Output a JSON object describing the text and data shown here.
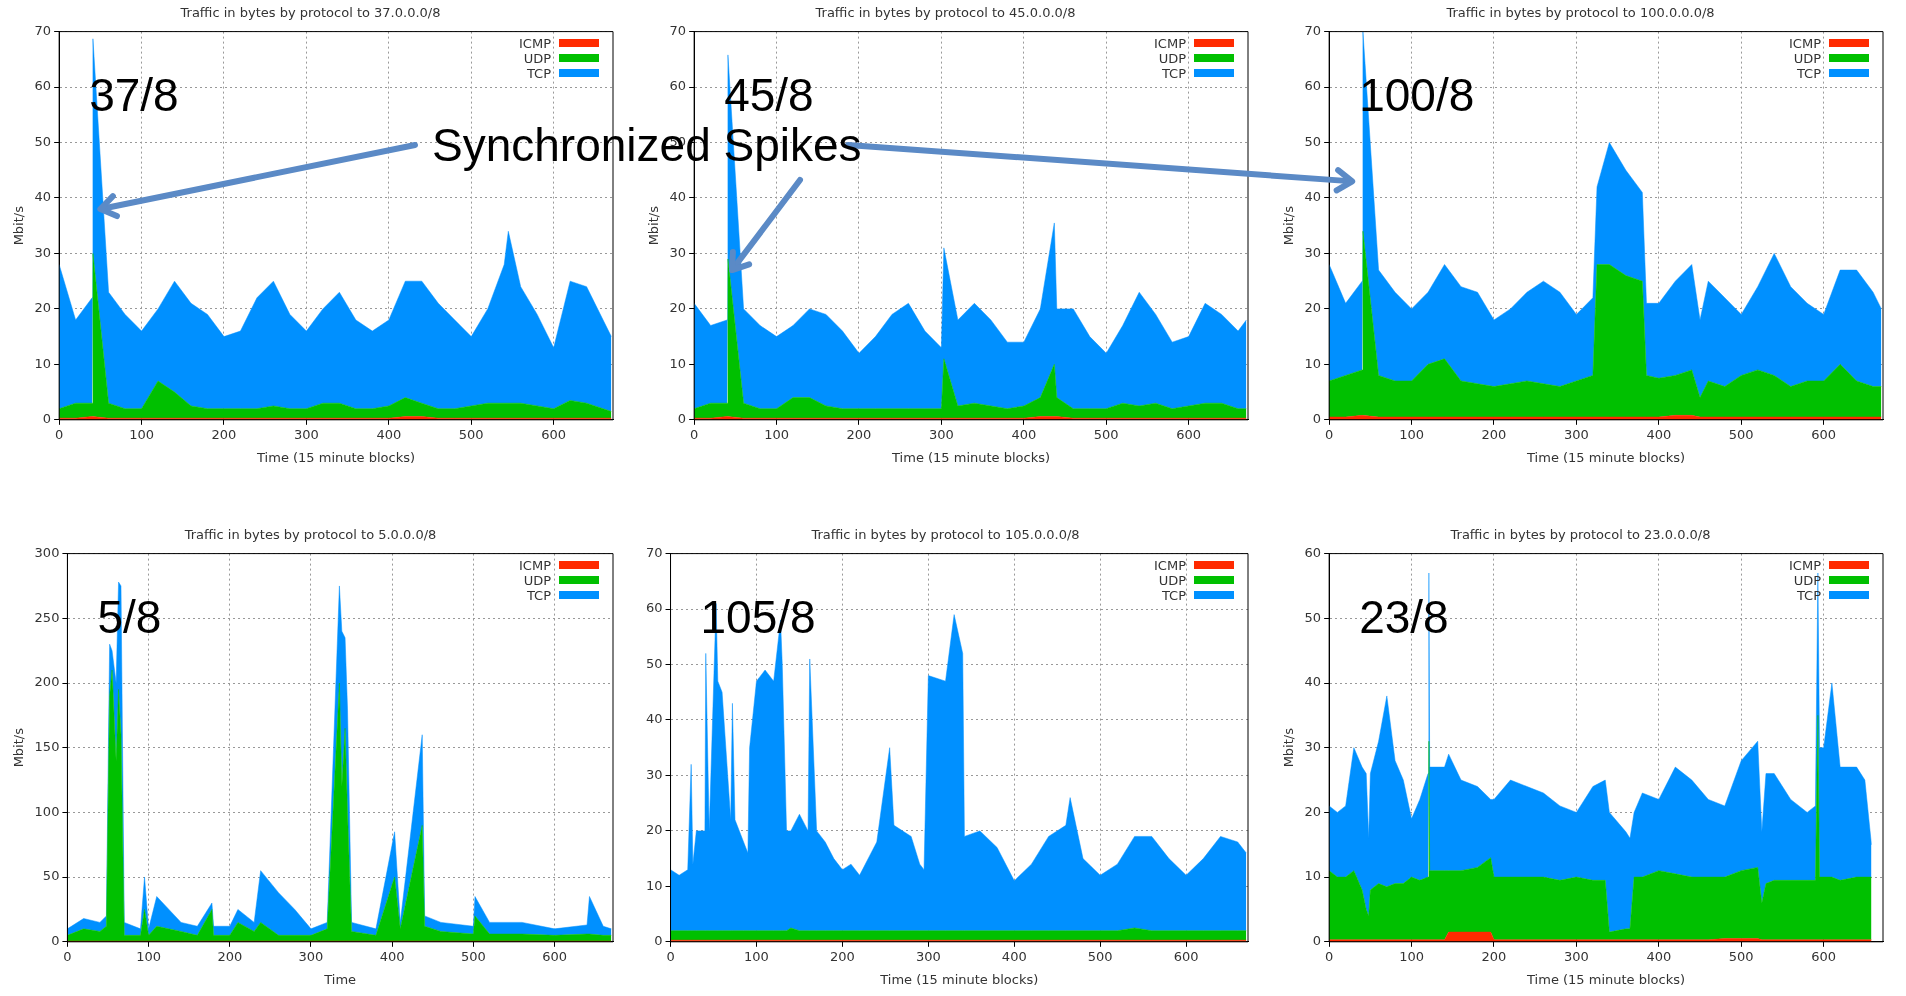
{
  "chart_data": [
    {
      "type": "area",
      "stacked": true,
      "title": "Traffic in bytes by protocol to 37.0.0.0/8",
      "xlabel": "Time (15 minute blocks)",
      "ylabel": "Mbit/s",
      "xlim": [
        0,
        672
      ],
      "xticks": [
        0,
        100,
        200,
        300,
        400,
        500,
        600
      ],
      "ylim": [
        0,
        70
      ],
      "yticks": [
        0,
        10,
        20,
        30,
        40,
        50,
        60,
        70
      ],
      "grid": true,
      "legend": "top right",
      "annotations": [
        "37/8",
        "Synchronized Spikes"
      ],
      "x": [
        0,
        20,
        40,
        41,
        60,
        80,
        100,
        120,
        140,
        160,
        180,
        200,
        220,
        240,
        260,
        280,
        300,
        320,
        340,
        360,
        380,
        400,
        420,
        440,
        460,
        480,
        500,
        520,
        540,
        545,
        560,
        580,
        600,
        620,
        640,
        660,
        670
      ],
      "series": [
        {
          "name": "ICMP",
          "color": "#ff2a00",
          "values": [
            0.3,
            0.3,
            0.6,
            0.6,
            0.3,
            0.3,
            0.3,
            0.3,
            0.3,
            0.3,
            0.3,
            0.3,
            0.3,
            0.3,
            0.3,
            0.3,
            0.3,
            0.3,
            0.3,
            0.3,
            0.3,
            0.3,
            0.6,
            0.6,
            0.3,
            0.3,
            0.3,
            0.3,
            0.3,
            0.3,
            0.3,
            0.3,
            0.3,
            0.3,
            0.3,
            0.3,
            0.3
          ]
        },
        {
          "name": "UDP",
          "color": "#00c000",
          "values": [
            1.7,
            2.7,
            2.4,
            29.4,
            2.7,
            1.7,
            1.7,
            6.7,
            4.7,
            2.2,
            1.7,
            1.7,
            1.7,
            1.7,
            2.2,
            1.7,
            1.7,
            2.7,
            2.7,
            1.7,
            1.7,
            2.2,
            3.4,
            2.4,
            1.7,
            1.7,
            2.2,
            2.7,
            2.7,
            2.7,
            2.7,
            2.2,
            1.7,
            3.2,
            2.7,
            1.7,
            1.2
          ]
        },
        {
          "name": "TCP",
          "color": "#0090ff",
          "values": [
            26,
            15,
            19,
            38.7,
            20,
            17,
            14,
            13,
            20,
            18.5,
            17,
            13,
            14,
            20,
            22.5,
            17,
            14,
            17,
            20,
            16,
            14,
            15.5,
            21,
            22,
            19,
            16,
            12.5,
            17,
            25,
            31,
            21,
            16.5,
            11,
            21.5,
            21,
            16,
            13.5
          ]
        }
      ]
    },
    {
      "type": "area",
      "stacked": true,
      "title": "Traffic in bytes by protocol to 45.0.0.0/8",
      "xlabel": "Time (15 minute blocks)",
      "ylabel": "Mbit/s",
      "xlim": [
        0,
        672
      ],
      "xticks": [
        0,
        100,
        200,
        300,
        400,
        500,
        600
      ],
      "ylim": [
        0,
        70
      ],
      "yticks": [
        0,
        10,
        20,
        30,
        40,
        50,
        60,
        70
      ],
      "grid": true,
      "legend": "top right",
      "annotations": [
        "45/8"
      ],
      "x": [
        0,
        20,
        40,
        41,
        60,
        80,
        100,
        120,
        140,
        160,
        180,
        200,
        220,
        240,
        260,
        280,
        300,
        303,
        320,
        340,
        360,
        380,
        400,
        420,
        437,
        440,
        460,
        480,
        500,
        520,
        540,
        560,
        580,
        600,
        620,
        640,
        660,
        670
      ],
      "series": [
        {
          "name": "ICMP",
          "color": "#ff2a00",
          "values": [
            0.3,
            0.3,
            0.6,
            0.6,
            0.3,
            0.3,
            0.3,
            0.3,
            0.3,
            0.3,
            0.3,
            0.3,
            0.3,
            0.3,
            0.3,
            0.3,
            0.3,
            0.3,
            0.3,
            0.3,
            0.3,
            0.3,
            0.3,
            0.6,
            0.6,
            0.6,
            0.3,
            0.3,
            0.3,
            0.3,
            0.3,
            0.3,
            0.3,
            0.3,
            0.3,
            0.3,
            0.3,
            0.3
          ]
        },
        {
          "name": "UDP",
          "color": "#00c000",
          "values": [
            1.7,
            2.7,
            2.4,
            28.4,
            2.7,
            1.7,
            1.7,
            3.7,
            3.7,
            2.2,
            1.7,
            1.7,
            1.7,
            1.7,
            1.7,
            1.7,
            1.7,
            10.7,
            2.2,
            2.7,
            2.2,
            1.7,
            2.2,
            3.4,
            9.4,
            3.4,
            1.7,
            1.7,
            1.7,
            2.7,
            2.2,
            2.7,
            1.7,
            2.2,
            2.7,
            2.7,
            1.7,
            1.7
          ]
        },
        {
          "name": "TCP",
          "color": "#0090ff",
          "values": [
            19,
            14,
            15,
            36.8,
            17,
            15,
            13,
            13,
            16,
            16.5,
            14,
            10,
            13,
            17,
            19,
            14,
            11,
            20,
            15.5,
            18,
            15.5,
            12,
            11.5,
            16,
            25.5,
            16,
            18,
            13,
            10,
            14,
            20.5,
            16,
            12,
            12.5,
            18,
            16,
            14,
            16
          ]
        }
      ]
    },
    {
      "type": "area",
      "stacked": true,
      "title": "Traffic in bytes by protocol to 100.0.0.0/8",
      "xlabel": "Time (15 minute blocks)",
      "ylabel": "Mbit/s",
      "xlim": [
        0,
        672
      ],
      "xticks": [
        0,
        100,
        200,
        300,
        400,
        500,
        600
      ],
      "ylim": [
        0,
        70
      ],
      "yticks": [
        0,
        10,
        20,
        30,
        40,
        50,
        60,
        70
      ],
      "grid": true,
      "legend": "top right",
      "annotations": [
        "100/8"
      ],
      "x": [
        0,
        20,
        40,
        41,
        60,
        80,
        100,
        120,
        140,
        160,
        180,
        200,
        220,
        240,
        260,
        280,
        300,
        320,
        325,
        340,
        360,
        380,
        385,
        400,
        420,
        440,
        450,
        460,
        480,
        500,
        520,
        540,
        560,
        580,
        600,
        620,
        640,
        660,
        670
      ],
      "series": [
        {
          "name": "ICMP",
          "color": "#ff2a00",
          "values": [
            0.5,
            0.5,
            0.8,
            0.8,
            0.5,
            0.5,
            0.5,
            0.5,
            0.5,
            0.5,
            0.5,
            0.5,
            0.5,
            0.5,
            0.5,
            0.5,
            0.5,
            0.5,
            0.5,
            0.5,
            0.5,
            0.5,
            0.5,
            0.5,
            0.8,
            0.8,
            0.5,
            0.5,
            0.5,
            0.5,
            0.5,
            0.5,
            0.5,
            0.5,
            0.5,
            0.5,
            0.5,
            0.5,
            0.5
          ]
        },
        {
          "name": "UDP",
          "color": "#00c000",
          "values": [
            6.5,
            7.5,
            8.2,
            33.2,
            7.5,
            6.5,
            6.5,
            9.5,
            10.5,
            6.5,
            6,
            5.5,
            6,
            6.5,
            6,
            5.5,
            6.5,
            7.5,
            27.5,
            27.5,
            25.5,
            24.5,
            7.5,
            7,
            7.2,
            8.2,
            3.5,
            6.5,
            5.5,
            7.5,
            8.5,
            7.5,
            5.5,
            6.5,
            6.5,
            9.5,
            6.5,
            5.5,
            5.5
          ]
        },
        {
          "name": "TCP",
          "color": "#0090ff",
          "values": [
            21,
            13,
            16,
            36,
            19,
            16,
            13,
            13,
            17,
            17,
            16.5,
            12,
            13.5,
            16,
            18.5,
            17,
            12,
            14,
            14,
            22,
            19,
            16,
            13,
            13.5,
            17,
            19,
            14,
            18,
            16,
            11,
            15,
            22,
            18,
            14,
            12,
            17,
            20,
            17,
            14
          ]
        }
      ]
    },
    {
      "type": "area",
      "stacked": true,
      "title": "Traffic in bytes by protocol to 5.0.0.0/8",
      "xlabel": "Time",
      "ylabel": "Mbit/s",
      "xlim": [
        0,
        672
      ],
      "xticks": [
        0,
        100,
        200,
        300,
        400,
        500,
        600
      ],
      "ylim": [
        0,
        300
      ],
      "yticks": [
        0,
        50,
        100,
        150,
        200,
        250,
        300
      ],
      "grid": true,
      "legend": "top right",
      "annotations": [
        "5/8"
      ],
      "x": [
        0,
        20,
        40,
        48,
        52,
        55,
        60,
        63,
        66,
        70,
        90,
        95,
        100,
        110,
        140,
        160,
        178,
        180,
        200,
        210,
        230,
        238,
        260,
        280,
        300,
        320,
        335,
        338,
        342,
        345,
        350,
        380,
        403,
        410,
        437,
        440,
        460,
        500,
        502,
        520,
        560,
        600,
        640,
        643,
        660,
        670
      ],
      "series": [
        {
          "name": "ICMP",
          "color": "#ff2a00",
          "values": [
            0.5,
            0.5,
            0.5,
            0.5,
            0.5,
            0.5,
            0.5,
            0.5,
            0.5,
            0.5,
            0.5,
            0.5,
            0.5,
            0.5,
            0.5,
            0.5,
            0.5,
            0.5,
            0.5,
            0.5,
            0.5,
            0.5,
            0.5,
            0.5,
            0.5,
            0.5,
            0.5,
            0.5,
            0.5,
            0.5,
            0.5,
            0.5,
            0.5,
            0.5,
            0.5,
            0.5,
            0.5,
            0.5,
            0.5,
            0.5,
            0.5,
            0.5,
            0.5,
            0.5,
            0.5,
            0.5
          ]
        },
        {
          "name": "UDP",
          "color": "#00c000",
          "values": [
            4.5,
            9.5,
            7.5,
            11.5,
            189.5,
            209.5,
            139.5,
            194.5,
            159.5,
            4.5,
            4.5,
            24.5,
            4.5,
            11.5,
            7.5,
            4.5,
            24.5,
            4.5,
            4.5,
            14.5,
            7.5,
            14.5,
            4.5,
            4.5,
            4.5,
            9.5,
            199.5,
            119.5,
            164.5,
            99.5,
            7.5,
            4.5,
            49.5,
            9.5,
            89.5,
            11.5,
            7.5,
            5.5,
            19.5,
            5.5,
            5.5,
            4.5,
            5.5,
            5.5,
            4.5,
            4.5
          ]
        },
        {
          "name": "TCP",
          "color": "#0090ff",
          "values": [
            5,
            8,
            7,
            8,
            40,
            15,
            60,
            83,
            115,
            10,
            5,
            25,
            5,
            23,
            7,
            7,
            5,
            7,
            7,
            10,
            7,
            40,
            33,
            20,
            5,
            5,
            75,
            120,
            70,
            80,
            7,
            5,
            35,
            5,
            70,
            8,
            7,
            6,
            15,
            9,
            9,
            5,
            7,
            29,
            7,
            5
          ]
        }
      ]
    },
    {
      "type": "area",
      "stacked": true,
      "title": "Traffic in bytes by protocol to 105.0.0.0/8",
      "xlabel": "Time (15 minute blocks)",
      "xlim": [
        0,
        672
      ],
      "xticks": [
        0,
        100,
        200,
        300,
        400,
        500,
        600
      ],
      "ylim": [
        0,
        70
      ],
      "yticks": [
        0,
        10,
        20,
        30,
        40,
        50,
        60,
        70
      ],
      "grid": true,
      "legend": "top right",
      "annotations": [
        "105/8"
      ],
      "x": [
        0,
        10,
        20,
        24,
        26,
        30,
        40,
        41,
        45,
        53,
        55,
        60,
        70,
        72,
        75,
        85,
        90,
        92,
        100,
        110,
        120,
        128,
        130,
        135,
        140,
        150,
        160,
        162,
        170,
        180,
        190,
        200,
        210,
        220,
        240,
        255,
        260,
        280,
        290,
        295,
        300,
        320,
        330,
        340,
        342,
        360,
        380,
        400,
        420,
        440,
        460,
        465,
        480,
        500,
        520,
        540,
        560,
        580,
        600,
        620,
        640,
        660,
        670
      ],
      "series": [
        {
          "name": "ICMP",
          "color": "#ff2a00",
          "values": [
            0.3,
            0.3,
            0.3,
            0.3,
            0.3,
            0.3,
            0.3,
            0.3,
            0.3,
            0.3,
            0.3,
            0.3,
            0.3,
            0.3,
            0.3,
            0.3,
            0.3,
            0.3,
            0.3,
            0.3,
            0.3,
            0.3,
            0.3,
            0.3,
            0.3,
            0.3,
            0.3,
            0.3,
            0.3,
            0.3,
            0.3,
            0.3,
            0.3,
            0.3,
            0.3,
            0.3,
            0.3,
            0.3,
            0.3,
            0.3,
            0.3,
            0.3,
            0.3,
            0.3,
            0.3,
            0.3,
            0.3,
            0.3,
            0.3,
            0.3,
            0.3,
            0.3,
            0.3,
            0.3,
            0.3,
            0.3,
            0.3,
            0.3,
            0.3,
            0.3,
            0.3,
            0.3,
            0.3
          ]
        },
        {
          "name": "UDP",
          "color": "#00c000",
          "values": [
            1.7,
            1.7,
            1.7,
            1.7,
            1.7,
            1.7,
            1.7,
            1.7,
            1.7,
            1.7,
            1.7,
            1.7,
            1.7,
            1.7,
            1.7,
            1.7,
            1.7,
            1.7,
            1.7,
            1.7,
            1.7,
            1.7,
            1.7,
            1.7,
            2.2,
            1.7,
            1.7,
            1.7,
            1.7,
            1.7,
            1.7,
            1.7,
            1.7,
            1.7,
            1.7,
            1.7,
            1.7,
            1.7,
            1.7,
            1.7,
            1.7,
            1.7,
            1.7,
            1.7,
            1.7,
            1.7,
            1.7,
            1.7,
            1.7,
            1.7,
            1.7,
            1.7,
            1.7,
            1.7,
            1.7,
            2.2,
            1.7,
            1.7,
            1.7,
            1.7,
            1.7,
            1.7,
            1.7
          ]
        },
        {
          "name": "TCP",
          "color": "#0090ff",
          "values": [
            11,
            10,
            11,
            30,
            12,
            18,
            18,
            50,
            18,
            59,
            45,
            43,
            20,
            41,
            20,
            16,
            14,
            33,
            45,
            47,
            45,
            56,
            48,
            18,
            17.5,
            21,
            18,
            49,
            18,
            16,
            13,
            11,
            12,
            10,
            16,
            33,
            19,
            17,
            12,
            11,
            46,
            45,
            57,
            50,
            17,
            18,
            15,
            9,
            12,
            17,
            19,
            24,
            13,
            10,
            12,
            16.5,
            17,
            13,
            10,
            13,
            17,
            16,
            14
          ]
        }
      ]
    },
    {
      "type": "area",
      "stacked": true,
      "title": "Traffic in bytes by protocol to 23.0.0.0/8",
      "xlabel": "Time (15 minute blocks)",
      "ylabel": "Mbit/s",
      "xlim": [
        0,
        672
      ],
      "xticks": [
        0,
        100,
        200,
        300,
        400,
        500,
        600
      ],
      "ylim": [
        0,
        60
      ],
      "yticks": [
        0,
        10,
        20,
        30,
        40,
        50,
        60
      ],
      "grid": true,
      "legend": "top right",
      "annotations": [
        "23/8"
      ],
      "x": [
        0,
        10,
        20,
        30,
        40,
        45,
        48,
        50,
        60,
        70,
        80,
        90,
        100,
        110,
        120,
        121,
        122,
        125,
        140,
        145,
        160,
        180,
        196,
        200,
        220,
        240,
        260,
        280,
        300,
        320,
        335,
        340,
        360,
        365,
        370,
        380,
        400,
        420,
        440,
        460,
        480,
        500,
        520,
        525,
        530,
        540,
        560,
        580,
        590,
        593,
        595,
        600,
        610,
        620,
        640,
        650,
        658
      ],
      "series": [
        {
          "name": "ICMP",
          "color": "#ff2a00",
          "values": [
            0.3,
            0.3,
            0.3,
            0.3,
            0.3,
            0.3,
            0.3,
            0.3,
            0.3,
            0.3,
            0.3,
            0.3,
            0.3,
            0.3,
            0.3,
            0.3,
            0.3,
            0.3,
            0.3,
            1.5,
            1.5,
            1.5,
            1.5,
            0.3,
            0.3,
            0.3,
            0.3,
            0.3,
            0.3,
            0.3,
            0.3,
            0.3,
            0.3,
            0.3,
            0.3,
            0.3,
            0.3,
            0.3,
            0.3,
            0.3,
            0.5,
            0.5,
            0.5,
            0.3,
            0.3,
            0.3,
            0.3,
            0.3,
            0.3,
            0.3,
            0.3,
            0.3,
            0.3,
            0.3,
            0.3,
            0.3,
            0.3
          ]
        },
        {
          "name": "UDP",
          "color": "#00c000",
          "values": [
            10.7,
            9.7,
            9.7,
            10.7,
            7.7,
            4.7,
            3.7,
            7.7,
            8.7,
            8.2,
            8.7,
            8.7,
            9.7,
            9.2,
            9.7,
            30.7,
            10.7,
            10.7,
            10.7,
            9.5,
            9.5,
            10,
            11.5,
            9.7,
            9.7,
            9.7,
            9.7,
            9.2,
            9.7,
            9.2,
            9.2,
            1.2,
            1.7,
            1.7,
            9.7,
            9.7,
            10.7,
            10.2,
            9.7,
            9.7,
            9.5,
            10.5,
            11,
            5.7,
            8.7,
            9.2,
            9.2,
            9.2,
            9.2,
            34.7,
            9.7,
            9.7,
            9.7,
            9.2,
            9.7,
            9.7,
            9.7
          ]
        },
        {
          "name": "TCP",
          "color": "#0090ff",
          "values": [
            10,
            10,
            11,
            19,
            19,
            21,
            12,
            18,
            22,
            29.5,
            19,
            16,
            9,
            12.5,
            16,
            26,
            16,
            16,
            16,
            18,
            14,
            12.5,
            9,
            12,
            15,
            14,
            13,
            11.5,
            10,
            14.5,
            15.5,
            18.5,
            15,
            14,
            10,
            13,
            11,
            16.5,
            15,
            12,
            11,
            17,
            19.5,
            11,
            17,
            16.5,
            12.5,
            10.5,
            11.5,
            22,
            20,
            20,
            30,
            17.5,
            17,
            15,
            5
          ]
        }
      ]
    }
  ]
}
